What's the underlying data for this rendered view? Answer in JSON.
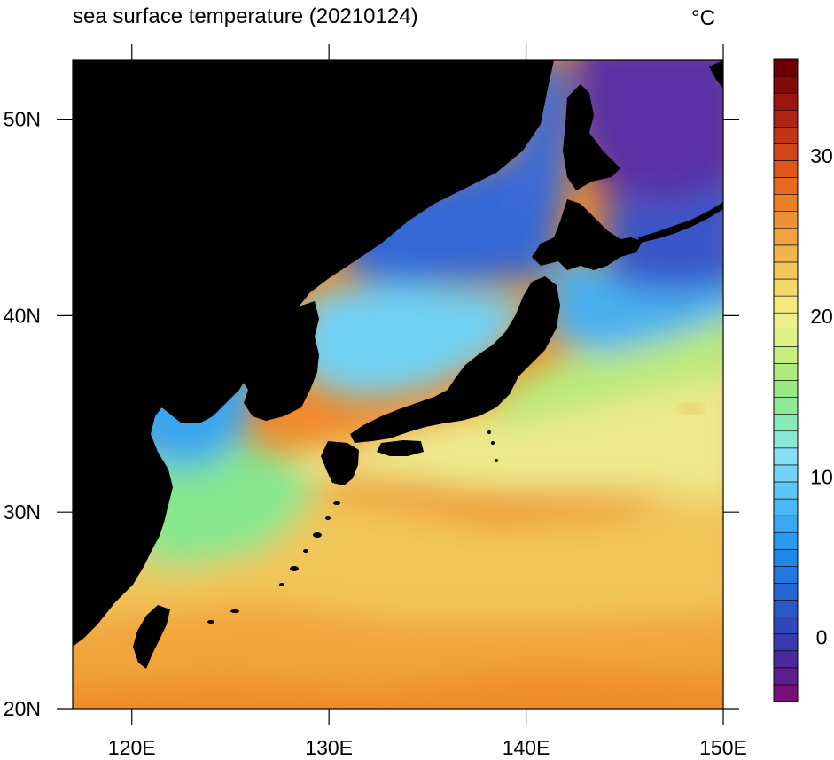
{
  "title": "sea surface temperature (20210124)",
  "units": "°C",
  "map": {
    "lon_range": [
      117,
      150
    ],
    "lat_range": [
      20,
      53
    ],
    "x_ticks": [
      {
        "value": 120,
        "label": "120E"
      },
      {
        "value": 130,
        "label": "130E"
      },
      {
        "value": 140,
        "label": "140E"
      },
      {
        "value": 150,
        "label": "150E"
      }
    ],
    "y_ticks": [
      {
        "value": 20,
        "label": "20N"
      },
      {
        "value": 30,
        "label": "30N"
      },
      {
        "value": 40,
        "label": "40N"
      },
      {
        "value": 50,
        "label": "50N"
      }
    ],
    "land_color": "#000000",
    "regions": {
      "sea_of_okhotsk": "#5a2fa6",
      "north_pacific_cold": "#3a4fc8",
      "sea_of_japan": "#4a9be8",
      "yellow_sea": "#3fb2f0",
      "east_china_sea": "#8ee36f",
      "kuroshio": "#e8e86a",
      "subtropical": "#f0c850",
      "tropical": "#ef8a2a"
    }
  },
  "colorbar": {
    "min": -4,
    "max": 36,
    "step": 1,
    "tick_labels": [
      {
        "value": 0,
        "label": "0"
      },
      {
        "value": 10,
        "label": "10"
      },
      {
        "value": 20,
        "label": "20"
      },
      {
        "value": 30,
        "label": "30"
      }
    ],
    "colors": [
      "#7a0f7a",
      "#5e1e8e",
      "#4b2aa0",
      "#3a3aac",
      "#3049b8",
      "#2a58c6",
      "#2468d4",
      "#1f78e0",
      "#1e88ea",
      "#2a98ef",
      "#3aa8f2",
      "#4ab8f4",
      "#5ec6f6",
      "#72d4f6",
      "#84e0f2",
      "#8ae8d6",
      "#88eab6",
      "#8cea96",
      "#9ae882",
      "#b0ea7c",
      "#c8ee7c",
      "#dcf084",
      "#ecf08a",
      "#f4e87a",
      "#f4d868",
      "#f2c65a",
      "#f2b44c",
      "#f0a240",
      "#ee9034",
      "#ec7e28",
      "#e86a20",
      "#e0561c",
      "#d2441a",
      "#c23418",
      "#ae2414",
      "#981610",
      "#82080a",
      "#6e0004"
    ]
  }
}
